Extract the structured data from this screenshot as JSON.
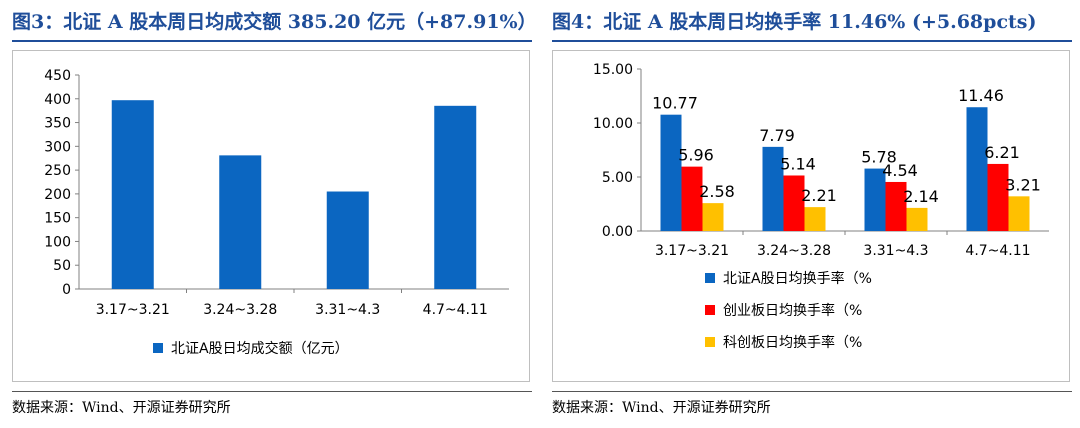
{
  "left": {
    "title": "图3：北证 A 股本周日均成交额 385.20 亿元（+87.91%）",
    "source": "数据来源：Wind、开源证券研究所",
    "chart_data": {
      "type": "bar",
      "categories": [
        "3.17~3.21",
        "3.24~3.28",
        "3.31~4.3",
        "4.7~4.11"
      ],
      "series": [
        {
          "name": "北证A股日均成交额（亿元）",
          "values": [
            397,
            281,
            205,
            385.2
          ],
          "color": "#0b66c1"
        }
      ],
      "ylim": [
        0,
        450
      ],
      "yticks": [
        0,
        50,
        100,
        150,
        200,
        250,
        300,
        350,
        400,
        450
      ],
      "ytick_labels": [
        "0",
        "50",
        "100",
        "150",
        "200",
        "250",
        "300",
        "350",
        "400",
        "450"
      ],
      "grid": false,
      "legend": "bottom"
    }
  },
  "right": {
    "title": "图4：北证 A 股本周日均换手率 11.46% (+5.68pcts)",
    "source": "数据来源：Wind、开源证券研究所",
    "chart_data": {
      "type": "bar",
      "categories": [
        "3.17~3.21",
        "3.24~3.28",
        "3.31~4.3",
        "4.7~4.11"
      ],
      "series": [
        {
          "name": "北证A股日均换手率（%",
          "values": [
            10.77,
            7.79,
            5.78,
            11.46
          ],
          "color": "#0b66c1",
          "labels": [
            "10.77",
            "7.79",
            "5.78",
            "11.46"
          ]
        },
        {
          "name": "创业板日均换手率（%",
          "values": [
            5.96,
            5.14,
            4.54,
            6.21
          ],
          "color": "#ff0000",
          "labels": [
            "5.96",
            "5.14",
            "4.54",
            "6.21"
          ]
        },
        {
          "name": "科创板日均换手率（%",
          "values": [
            2.58,
            2.21,
            2.14,
            3.21
          ],
          "color": "#ffc000",
          "labels": [
            "2.58",
            "2.21",
            "2.14",
            "3.21"
          ]
        }
      ],
      "ylim": [
        0,
        15
      ],
      "yticks": [
        0,
        5,
        10,
        15
      ],
      "ytick_labels": [
        "0.00",
        "5.00",
        "10.00",
        "15.00"
      ],
      "grid": false,
      "legend": "bottom"
    }
  }
}
